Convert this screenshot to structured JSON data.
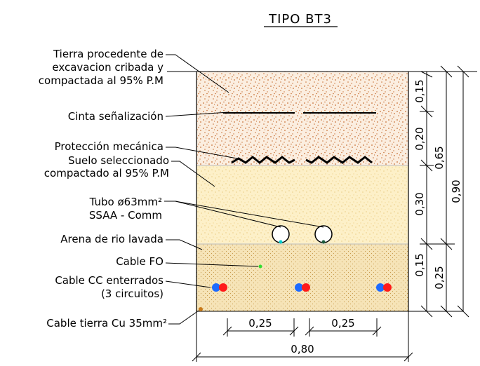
{
  "title": "TIPO BT3",
  "labels": {
    "tierra_1": "Tierra procedente de",
    "tierra_2": "excavacion cribada y",
    "tierra_3": "compactada al 95% P.M",
    "cinta": "Cinta señalización",
    "proteccion": "Protección mecánica",
    "suelo_1": "Suelo seleccionado",
    "suelo_2": "compactado al 95% P.M",
    "tubo_1": "Tubo ø63mm²",
    "tubo_2": "SSAA - Comm",
    "arena": "Arena de rio lavada",
    "cable_fo": "Cable FO",
    "cable_cc_1": "Cable CC enterrados",
    "cable_cc_2": "(3 circuitos)",
    "cable_tierra": "Cable tierra Cu 35mm²"
  },
  "dimensions": {
    "v_015_top": "0,15",
    "v_020": "0,20",
    "v_030": "0,30",
    "v_015_bot": "0,15",
    "v_065": "0,65",
    "v_025": "0,25",
    "v_090": "0,90",
    "h_025_left": "0,25",
    "h_025_right": "0,25",
    "h_080": "0,80"
  },
  "colors": {
    "soil_fill": "#fbeee0",
    "soil_dots": "#c8733a",
    "sand_fill": "#fdf0c8",
    "sand_dots": "#e0b860",
    "river_sand_fill": "#f6e4b8",
    "river_sand_dots": "#c79a4c",
    "cable_blue": "#1e6bff",
    "cable_red": "#ff1a1a",
    "cable_fo": "#33dd33",
    "cable_tierra": "#c87a1a",
    "tube_marker_cyan": "#00cccc"
  }
}
